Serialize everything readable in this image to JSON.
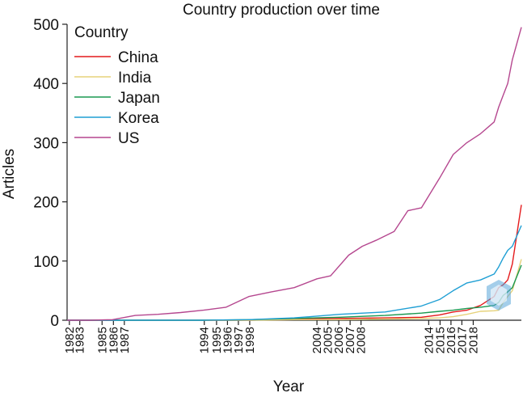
{
  "chart_data": {
    "type": "line",
    "title": "Country production over time",
    "xlabel": "Year",
    "ylabel": "Articles",
    "ylim": [
      0,
      500
    ],
    "yticks": [
      0,
      100,
      200,
      300,
      400,
      500
    ],
    "x_tick_labels": [
      "1982",
      "1983",
      "1985",
      "1986",
      "1987",
      "1994",
      "1995",
      "1996",
      "1997",
      "1998",
      "2004",
      "2005",
      "2006",
      "2007",
      "2008",
      "2014",
      "2015",
      "2016",
      "2017",
      "2018"
    ],
    "legend_title": "Country",
    "legend_position": "top-left",
    "grid": false,
    "series": [
      {
        "name": "China",
        "color": "#e41a1c",
        "x": [
          0,
          10,
          20,
          30,
          40,
          50,
          60,
          70,
          78,
          82,
          85,
          88,
          91,
          94,
          95,
          96,
          97,
          98,
          100
        ],
        "y": [
          0,
          0,
          0,
          0,
          0,
          2,
          3,
          4,
          5,
          9,
          14,
          17,
          25,
          40,
          55,
          60,
          68,
          95,
          195
        ]
      },
      {
        "name": "India",
        "color": "#e6d27a",
        "x": [
          0,
          10,
          20,
          30,
          40,
          50,
          60,
          70,
          78,
          82,
          85,
          88,
          91,
          94,
          95,
          96,
          97,
          98,
          100
        ],
        "y": [
          0,
          0,
          0,
          0,
          0,
          1,
          1,
          2,
          3,
          4,
          6,
          10,
          15,
          16,
          17,
          30,
          40,
          50,
          103
        ]
      },
      {
        "name": "Japan",
        "color": "#1a9850",
        "x": [
          0,
          10,
          20,
          30,
          40,
          50,
          60,
          70,
          78,
          82,
          85,
          88,
          91,
          94,
          95,
          96,
          97,
          98,
          100
        ],
        "y": [
          0,
          0,
          0,
          0,
          1,
          3,
          5,
          8,
          12,
          15,
          17,
          20,
          22,
          25,
          30,
          42,
          48,
          55,
          93
        ]
      },
      {
        "name": "Korea",
        "color": "#1f9fd4",
        "x": [
          0,
          10,
          20,
          30,
          40,
          50,
          60,
          70,
          78,
          82,
          85,
          88,
          91,
          94,
          95,
          96,
          97,
          98,
          100
        ],
        "y": [
          0,
          0,
          0,
          0,
          1,
          4,
          10,
          14,
          24,
          35,
          50,
          63,
          68,
          78,
          90,
          105,
          118,
          125,
          160
        ]
      },
      {
        "name": "US",
        "color": "#b5478f",
        "x": [
          0,
          5,
          10,
          15,
          20,
          25,
          30,
          35,
          40,
          45,
          50,
          55,
          58,
          62,
          65,
          68,
          72,
          75,
          78,
          82,
          85,
          88,
          91,
          94,
          95,
          96,
          97,
          98,
          100
        ],
        "y": [
          0,
          0,
          1,
          8,
          10,
          13,
          17,
          22,
          40,
          48,
          55,
          70,
          75,
          110,
          125,
          135,
          150,
          185,
          190,
          240,
          280,
          300,
          315,
          335,
          360,
          380,
          400,
          440,
          495
        ]
      }
    ]
  }
}
